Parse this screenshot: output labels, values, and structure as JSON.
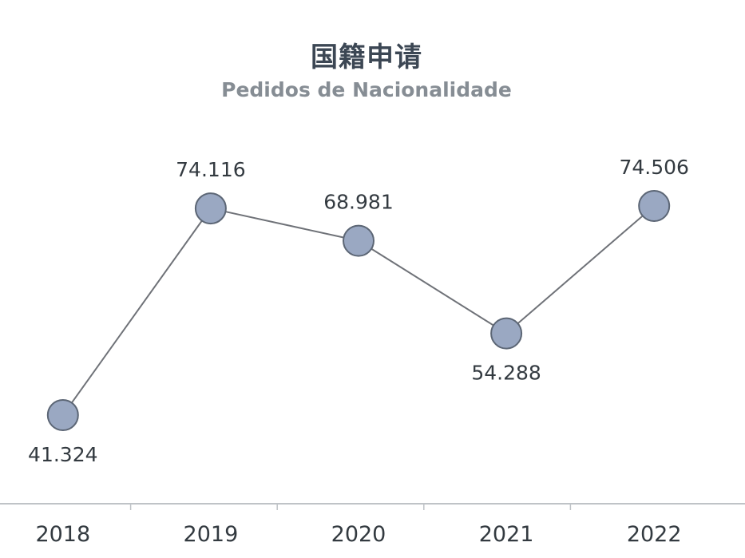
{
  "chart_data": {
    "type": "line",
    "title": "国籍申请",
    "subtitle": "Pedidos de Nacionalidade",
    "categories": [
      "2018",
      "2019",
      "2020",
      "2021",
      "2022"
    ],
    "series": [
      {
        "values": [
          41324,
          74116,
          68981,
          54288,
          74506
        ],
        "labels": [
          "41.324",
          "74.116",
          "68.981",
          "54.288",
          "74.506"
        ]
      }
    ],
    "label_placement": [
      "below",
      "above",
      "above",
      "below",
      "above"
    ],
    "ylim": [
      25000,
      90000
    ],
    "grid": false,
    "legend": "none",
    "colors": {
      "line": "#6f7278",
      "marker_fill": "#9aa8c2",
      "marker_stroke": "#5c6675",
      "axis": "#bfc3c7",
      "text": "#333a40"
    }
  }
}
